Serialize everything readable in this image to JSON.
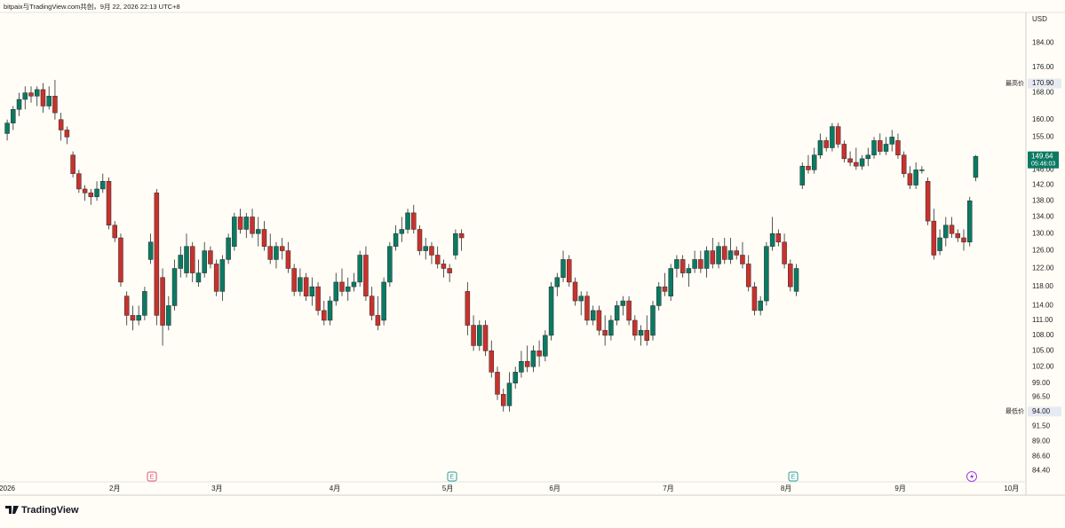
{
  "header": "bitpaix与TradingView.com共创，9月 22, 2026 22:13 UTC+8",
  "footer": "TradingView",
  "event_markers": [
    "E",
    "E",
    "E"
  ],
  "chart_data": {
    "type": "candlestick",
    "currency": "USD",
    "log_scale": true,
    "grid": false,
    "up_color": "#0b7a62",
    "down_color": "#c8322d",
    "ylim": [
      82.7,
      194.5
    ],
    "yticks": [
      {
        "value": 184,
        "label": "184.00"
      },
      {
        "value": 176,
        "label": "176.00"
      },
      {
        "value": 168,
        "label": "168.00"
      },
      {
        "value": 160,
        "label": "160.00"
      },
      {
        "value": 155,
        "label": "155.00"
      },
      {
        "value": 146,
        "label": "146.00"
      },
      {
        "value": 142,
        "label": "142.00"
      },
      {
        "value": 138,
        "label": "138.00"
      },
      {
        "value": 134,
        "label": "134.00"
      },
      {
        "value": 130,
        "label": "130.00"
      },
      {
        "value": 126,
        "label": "126.00"
      },
      {
        "value": 122,
        "label": "122.00"
      },
      {
        "value": 118,
        "label": "118.00"
      },
      {
        "value": 114,
        "label": "114.00"
      },
      {
        "value": 111,
        "label": "111.00"
      },
      {
        "value": 108,
        "label": "108.00"
      },
      {
        "value": 105,
        "label": "105.00"
      },
      {
        "value": 102,
        "label": "102.00"
      },
      {
        "value": 99,
        "label": "99.00"
      },
      {
        "value": 96.5,
        "label": "96.50"
      },
      {
        "value": 91.5,
        "label": "91.50"
      },
      {
        "value": 89,
        "label": "89.00"
      },
      {
        "value": 86.6,
        "label": "86.60"
      },
      {
        "value": 84.4,
        "label": "84.40"
      }
    ],
    "xlim": [
      -1.2,
      170.4
    ],
    "xticks": [
      {
        "value": 0,
        "label": "2026"
      },
      {
        "value": 18,
        "label": "2月"
      },
      {
        "value": 35.1,
        "label": "3月"
      },
      {
        "value": 54.8,
        "label": "4月"
      },
      {
        "value": 73.7,
        "label": "5月"
      },
      {
        "value": 91.6,
        "label": "6月"
      },
      {
        "value": 110.6,
        "label": "7月"
      },
      {
        "value": 130.3,
        "label": "8月"
      },
      {
        "value": 149.4,
        "label": "9月"
      },
      {
        "value": 168,
        "label": "10月"
      }
    ],
    "high_marker": {
      "label": "最高价",
      "value": 170.9,
      "value_label": "170.90"
    },
    "low_marker": {
      "label": "最低价",
      "value": 94,
      "value_label": "94.00"
    },
    "last_price": {
      "value": 149.64,
      "label": "149.64",
      "countdown": "05:46:03"
    },
    "ohlc": [
      [
        156,
        160,
        154,
        159
      ],
      [
        159,
        164,
        157,
        163
      ],
      [
        163,
        168,
        161,
        166
      ],
      [
        166,
        170,
        163,
        168
      ],
      [
        168,
        170,
        165,
        167
      ],
      [
        167,
        170,
        164,
        169
      ],
      [
        169,
        171,
        162,
        164
      ],
      [
        164,
        170,
        163,
        167
      ],
      [
        167,
        172,
        160,
        162
      ],
      [
        160,
        162,
        154,
        157
      ],
      [
        157,
        158,
        153,
        155
      ],
      [
        150,
        151,
        144,
        145
      ],
      [
        145,
        146,
        140,
        141
      ],
      [
        141,
        142,
        138,
        140
      ],
      [
        140,
        141,
        137,
        139
      ],
      [
        139,
        143,
        138,
        141
      ],
      [
        141,
        145,
        140,
        143
      ],
      [
        143,
        144,
        131,
        132
      ],
      [
        132,
        133,
        128,
        129
      ],
      [
        129,
        130,
        118,
        119
      ],
      [
        116,
        117,
        110,
        112
      ],
      [
        112,
        114,
        109,
        111
      ],
      [
        111,
        114,
        110,
        112
      ],
      [
        112,
        118,
        111,
        117
      ],
      [
        124,
        130,
        123,
        128
      ],
      [
        140,
        141,
        110,
        112
      ],
      [
        120,
        122,
        106,
        110
      ],
      [
        110,
        116,
        109,
        114
      ],
      [
        114,
        124,
        113,
        122
      ],
      [
        122,
        127,
        120,
        125
      ],
      [
        121,
        130,
        120,
        127
      ],
      [
        127,
        128,
        119,
        121
      ],
      [
        119,
        124,
        118,
        121
      ],
      [
        121,
        128,
        120,
        126
      ],
      [
        126,
        127,
        122,
        123
      ],
      [
        123,
        124,
        116,
        117
      ],
      [
        117,
        125,
        115,
        124
      ],
      [
        124,
        130,
        123,
        129
      ],
      [
        127,
        135,
        126,
        134
      ],
      [
        134,
        136,
        130,
        131
      ],
      [
        131,
        135,
        129,
        134
      ],
      [
        134,
        136,
        129,
        130
      ],
      [
        130,
        134,
        127,
        131
      ],
      [
        131,
        133,
        126,
        127
      ],
      [
        127,
        130,
        123,
        124
      ],
      [
        124,
        128,
        122,
        127
      ],
      [
        127,
        129,
        124,
        126
      ],
      [
        126,
        128,
        121,
        122
      ],
      [
        122,
        123,
        116,
        117
      ],
      [
        117,
        122,
        116,
        120
      ],
      [
        120,
        121,
        115,
        116
      ],
      [
        116,
        120,
        114,
        118
      ],
      [
        118,
        119,
        112,
        113
      ],
      [
        113,
        115,
        110,
        111
      ],
      [
        111,
        116,
        110,
        115
      ],
      [
        115,
        121,
        114,
        119
      ],
      [
        119,
        122,
        116,
        117
      ],
      [
        117,
        120,
        115,
        118
      ],
      [
        118,
        121,
        117,
        119
      ],
      [
        119,
        126,
        118,
        125
      ],
      [
        125,
        127,
        115,
        116
      ],
      [
        116,
        118,
        111,
        112
      ],
      [
        112,
        116,
        109,
        110
      ],
      [
        111,
        120,
        110,
        119
      ],
      [
        119,
        128,
        118,
        127
      ],
      [
        127,
        132,
        126,
        130
      ],
      [
        130,
        134,
        128,
        131
      ],
      [
        131,
        136,
        130,
        135
      ],
      [
        135,
        137,
        130,
        131
      ],
      [
        131,
        132,
        125,
        126
      ],
      [
        126,
        129,
        124,
        127
      ],
      [
        127,
        128,
        123,
        125
      ],
      [
        125,
        127,
        122,
        123
      ],
      [
        123,
        124,
        120,
        122
      ],
      [
        122,
        123,
        119,
        121
      ],
      [
        125,
        131,
        124,
        130
      ],
      [
        130,
        131,
        126,
        129
      ],
      [
        117,
        119,
        108,
        110
      ],
      [
        110,
        112,
        105,
        106
      ],
      [
        106,
        111,
        105,
        110
      ],
      [
        110,
        111,
        104,
        105
      ],
      [
        105,
        107,
        100,
        101
      ],
      [
        101,
        102,
        96,
        97
      ],
      [
        97,
        98,
        94,
        95
      ],
      [
        95,
        101,
        94,
        99
      ],
      [
        99,
        102,
        98,
        101
      ],
      [
        101,
        105,
        100,
        103
      ],
      [
        103,
        106,
        101,
        102
      ],
      [
        102,
        106,
        101,
        105
      ],
      [
        105,
        107,
        102,
        104
      ],
      [
        104,
        109,
        103,
        108
      ],
      [
        108,
        119,
        107,
        118
      ],
      [
        118,
        121,
        116,
        120
      ],
      [
        120,
        126,
        119,
        124
      ],
      [
        124,
        125,
        118,
        119
      ],
      [
        119,
        120,
        114,
        115
      ],
      [
        115,
        117,
        112,
        116
      ],
      [
        116,
        117,
        110,
        111
      ],
      [
        111,
        114,
        110,
        113
      ],
      [
        113,
        114,
        108,
        109
      ],
      [
        109,
        112,
        106,
        108
      ],
      [
        108,
        112,
        107,
        111
      ],
      [
        111,
        115,
        110,
        114
      ],
      [
        114,
        116,
        112,
        115
      ],
      [
        115,
        116,
        110,
        111
      ],
      [
        111,
        112,
        107,
        108
      ],
      [
        108,
        110,
        106,
        109
      ],
      [
        109,
        112,
        106,
        107
      ],
      [
        108,
        115,
        107,
        114
      ],
      [
        114,
        119,
        113,
        118
      ],
      [
        118,
        121,
        116,
        117
      ],
      [
        116,
        123,
        115,
        122
      ],
      [
        122,
        125,
        120,
        124
      ],
      [
        124,
        125,
        120,
        121
      ],
      [
        121,
        123,
        118,
        122
      ],
      [
        122,
        126,
        121,
        124
      ],
      [
        124,
        126,
        121,
        122
      ],
      [
        122,
        127,
        120,
        126
      ],
      [
        126,
        129,
        122,
        123
      ],
      [
        123,
        128,
        122,
        127
      ],
      [
        127,
        129,
        123,
        124
      ],
      [
        124,
        129,
        123,
        126
      ],
      [
        126,
        127,
        124,
        125
      ],
      [
        125,
        128,
        122,
        123
      ],
      [
        123,
        125,
        117,
        118
      ],
      [
        118,
        119,
        112,
        113
      ],
      [
        113,
        116,
        112,
        115
      ],
      [
        115,
        128,
        114,
        127
      ],
      [
        127,
        134,
        126,
        130
      ],
      [
        130,
        131,
        127,
        128
      ],
      [
        128,
        130,
        122,
        123
      ],
      [
        123,
        124,
        117,
        118
      ],
      [
        117,
        123,
        116,
        122
      ],
      [
        142,
        148,
        141,
        147
      ],
      [
        147,
        150,
        145,
        146
      ],
      [
        146,
        152,
        145,
        150
      ],
      [
        150,
        156,
        149,
        154
      ],
      [
        154,
        155,
        151,
        152
      ],
      [
        152,
        159,
        151,
        158
      ],
      [
        158,
        159,
        152,
        153
      ],
      [
        153,
        154,
        148,
        149
      ],
      [
        149,
        151,
        147,
        148
      ],
      [
        148,
        152,
        146,
        147
      ],
      [
        147,
        150,
        146,
        149
      ],
      [
        149,
        152,
        147,
        150
      ],
      [
        150,
        155,
        149,
        154
      ],
      [
        154,
        156,
        150,
        151
      ],
      [
        151,
        155,
        150,
        153
      ],
      [
        153,
        157,
        151,
        155
      ],
      [
        154,
        156,
        149,
        150
      ],
      [
        150,
        151,
        144,
        145
      ],
      [
        145,
        147,
        141,
        142
      ],
      [
        142,
        148,
        141,
        146
      ],
      [
        146,
        147,
        145,
        146
      ],
      [
        143,
        144,
        132,
        133
      ],
      [
        133,
        136,
        124,
        125
      ],
      [
        126,
        131,
        125,
        129
      ],
      [
        129,
        134,
        127,
        132
      ],
      [
        132,
        134,
        129,
        130
      ],
      [
        130,
        131,
        128,
        129
      ],
      [
        129,
        131,
        126,
        128
      ],
      [
        128,
        139,
        127,
        138
      ],
      [
        144,
        150,
        143,
        149.64
      ]
    ]
  }
}
